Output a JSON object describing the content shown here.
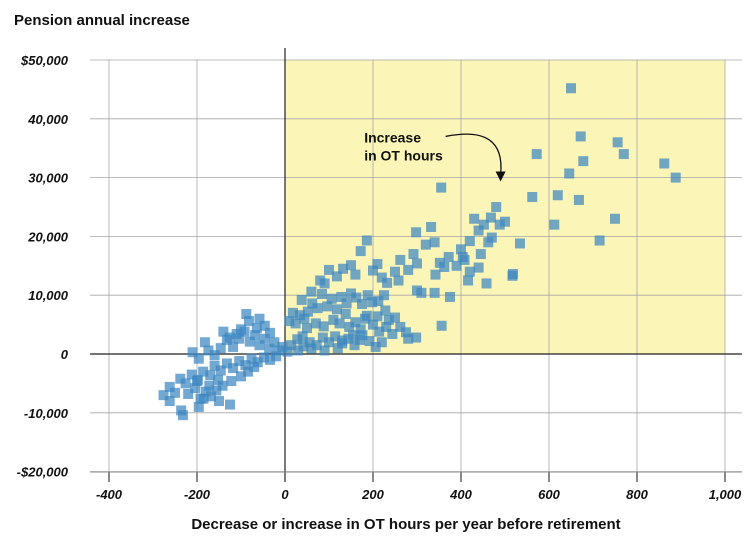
{
  "chart_data": {
    "type": "scatter",
    "title": "",
    "ylabel": "Pension annual increase",
    "xlabel": "Decrease or increase in OT hours per year before retirement",
    "xlim": [
      -400,
      1000
    ],
    "ylim": [
      -20000,
      50000
    ],
    "x_ticks": [
      -400,
      -200,
      0,
      200,
      400,
      600,
      800,
      1000
    ],
    "x_tick_labels": [
      "-400",
      "-200",
      "0",
      "200",
      "400",
      "600",
      "800",
      "1,000"
    ],
    "y_ticks": [
      -20000,
      -10000,
      0,
      10000,
      20000,
      30000,
      40000,
      50000
    ],
    "y_tick_labels": [
      "-$20,000",
      "-10,000",
      "0",
      "10,000",
      "20,000",
      "30,000",
      "40,000",
      "$50,000"
    ],
    "grid": true,
    "highlight_region": {
      "x": [
        0,
        1000
      ],
      "y": [
        0,
        50000
      ],
      "color": "#fbf5b8"
    },
    "annotation": {
      "lines": [
        "Increase",
        "in OT hours"
      ],
      "anchor": [
        180,
        36000
      ],
      "arrow_from": [
        365,
        37000
      ],
      "arrow_to": [
        490,
        29500
      ]
    },
    "marker_color": "#3d87c1",
    "series": [
      {
        "points": [
          [
            650,
            45200
          ],
          [
            672,
            37000
          ],
          [
            756,
            36000
          ],
          [
            678,
            32800
          ],
          [
            770,
            34000
          ],
          [
            862,
            32400
          ],
          [
            888,
            30000
          ],
          [
            572,
            34000
          ],
          [
            646,
            30700
          ],
          [
            562,
            26700
          ],
          [
            620,
            27000
          ],
          [
            668,
            26200
          ],
          [
            612,
            22000
          ],
          [
            750,
            23000
          ],
          [
            715,
            19300
          ],
          [
            534,
            18800
          ],
          [
            518,
            13600
          ],
          [
            517,
            13300
          ],
          [
            480,
            25000
          ],
          [
            468,
            23200
          ],
          [
            500,
            22500
          ],
          [
            488,
            22000
          ],
          [
            452,
            22000
          ],
          [
            430,
            23000
          ],
          [
            440,
            21000
          ],
          [
            470,
            19800
          ],
          [
            462,
            19000
          ],
          [
            420,
            19200
          ],
          [
            400,
            17800
          ],
          [
            440,
            14700
          ],
          [
            420,
            14000
          ],
          [
            404,
            16500
          ],
          [
            445,
            17000
          ],
          [
            416,
            12500
          ],
          [
            458,
            12000
          ],
          [
            408,
            16000
          ],
          [
            390,
            15000
          ],
          [
            372,
            16500
          ],
          [
            352,
            15500
          ],
          [
            342,
            13500
          ],
          [
            362,
            14800
          ],
          [
            355,
            28300
          ],
          [
            332,
            21600
          ],
          [
            340,
            19000
          ],
          [
            320,
            18600
          ],
          [
            298,
            20700
          ],
          [
            292,
            17000
          ],
          [
            300,
            15400
          ],
          [
            280,
            14300
          ],
          [
            262,
            16000
          ],
          [
            250,
            14000
          ],
          [
            258,
            12500
          ],
          [
            232,
            12100
          ],
          [
            220,
            13000
          ],
          [
            210,
            15300
          ],
          [
            200,
            14200
          ],
          [
            186,
            19300
          ],
          [
            172,
            17500
          ],
          [
            160,
            13500
          ],
          [
            150,
            15100
          ],
          [
            132,
            14500
          ],
          [
            118,
            13200
          ],
          [
            100,
            14300
          ],
          [
            60,
            10600
          ],
          [
            80,
            12500
          ],
          [
            90,
            12000
          ],
          [
            38,
            9200
          ],
          [
            300,
            10800
          ],
          [
            310,
            10400
          ],
          [
            340,
            10400
          ],
          [
            375,
            9700
          ],
          [
            356,
            4800
          ],
          [
            298,
            2800
          ],
          [
            280,
            2600
          ],
          [
            250,
            6200
          ],
          [
            236,
            5800
          ],
          [
            228,
            7400
          ],
          [
            210,
            6400
          ],
          [
            182,
            6000
          ],
          [
            176,
            3200
          ],
          [
            155,
            3200
          ],
          [
            130,
            2300
          ],
          [
            225,
            10000
          ],
          [
            212,
            9000
          ],
          [
            198,
            8800
          ],
          [
            188,
            10000
          ],
          [
            175,
            8500
          ],
          [
            162,
            9600
          ],
          [
            150,
            10300
          ],
          [
            140,
            8600
          ],
          [
            128,
            9700
          ],
          [
            118,
            7600
          ],
          [
            106,
            9400
          ],
          [
            96,
            8100
          ],
          [
            84,
            10200
          ],
          [
            74,
            7800
          ],
          [
            62,
            8600
          ],
          [
            52,
            7200
          ],
          [
            44,
            6000
          ],
          [
            34,
            6600
          ],
          [
            24,
            5200
          ],
          [
            18,
            7000
          ],
          [
            10,
            5600
          ],
          [
            50,
            4400
          ],
          [
            70,
            5200
          ],
          [
            88,
            4700
          ],
          [
            110,
            5800
          ],
          [
            124,
            5200
          ],
          [
            138,
            6800
          ],
          [
            146,
            4600
          ],
          [
            160,
            5400
          ],
          [
            172,
            4200
          ],
          [
            186,
            6500
          ],
          [
            200,
            5000
          ],
          [
            214,
            3800
          ],
          [
            230,
            4600
          ],
          [
            244,
            3400
          ],
          [
            262,
            4600
          ],
          [
            275,
            3700
          ],
          [
            28,
            2500
          ],
          [
            40,
            3000
          ],
          [
            56,
            2000
          ],
          [
            72,
            1500
          ],
          [
            86,
            2800
          ],
          [
            100,
            2000
          ],
          [
            114,
            3000
          ],
          [
            130,
            1800
          ],
          [
            144,
            2600
          ],
          [
            158,
            1500
          ],
          [
            170,
            2400
          ],
          [
            192,
            2200
          ],
          [
            206,
            1200
          ],
          [
            220,
            2000
          ],
          [
            120,
            1000
          ],
          [
            90,
            600
          ],
          [
            60,
            900
          ],
          [
            42,
            1300
          ],
          [
            30,
            600
          ],
          [
            14,
            1500
          ],
          [
            6,
            400
          ],
          [
            -6,
            1200
          ],
          [
            -14,
            600
          ],
          [
            -24,
            2000
          ],
          [
            -36,
            900
          ],
          [
            -46,
            2600
          ],
          [
            -58,
            1500
          ],
          [
            -68,
            3200
          ],
          [
            -80,
            2100
          ],
          [
            -92,
            3800
          ],
          [
            -104,
            2600
          ],
          [
            -118,
            1200
          ],
          [
            -132,
            2400
          ],
          [
            -146,
            1000
          ],
          [
            -160,
            -200
          ],
          [
            -174,
            600
          ],
          [
            -182,
            2000
          ],
          [
            -196,
            -800
          ],
          [
            -210,
            300
          ],
          [
            -20,
            -400
          ],
          [
            -34,
            -1000
          ],
          [
            -48,
            -600
          ],
          [
            -62,
            -1400
          ],
          [
            -76,
            -800
          ],
          [
            -90,
            -1900
          ],
          [
            -104,
            -1200
          ],
          [
            -118,
            -2400
          ],
          [
            -132,
            -1600
          ],
          [
            -146,
            -2800
          ],
          [
            -160,
            -2000
          ],
          [
            -170,
            -3600
          ],
          [
            -186,
            -3000
          ],
          [
            -198,
            -4400
          ],
          [
            -212,
            -3500
          ],
          [
            -226,
            -5000
          ],
          [
            -238,
            -4200
          ],
          [
            -250,
            -6600
          ],
          [
            -262,
            -5600
          ],
          [
            -276,
            -7000
          ],
          [
            -100,
            -3800
          ],
          [
            -84,
            -3000
          ],
          [
            -122,
            -4600
          ],
          [
            -70,
            -2200
          ],
          [
            -142,
            -5400
          ],
          [
            -156,
            -6200
          ],
          [
            -168,
            -7200
          ],
          [
            -180,
            -6400
          ],
          [
            -192,
            -7600
          ],
          [
            -204,
            -5800
          ],
          [
            -220,
            -6800
          ],
          [
            -236,
            -9600
          ],
          [
            -232,
            -10400
          ],
          [
            -262,
            -8000
          ],
          [
            -64,
            4400
          ],
          [
            -82,
            5600
          ],
          [
            -100,
            4200
          ],
          [
            -88,
            6800
          ],
          [
            -46,
            4800
          ],
          [
            -58,
            6000
          ],
          [
            -34,
            3600
          ],
          [
            -110,
            3400
          ],
          [
            -126,
            2800
          ],
          [
            -140,
            3800
          ],
          [
            -200,
            -4600
          ],
          [
            -185,
            -7600
          ],
          [
            -150,
            -8000
          ],
          [
            -125,
            -8600
          ],
          [
            -196,
            -9000
          ],
          [
            -172,
            -5400
          ],
          [
            -152,
            -4400
          ]
        ]
      }
    ]
  }
}
